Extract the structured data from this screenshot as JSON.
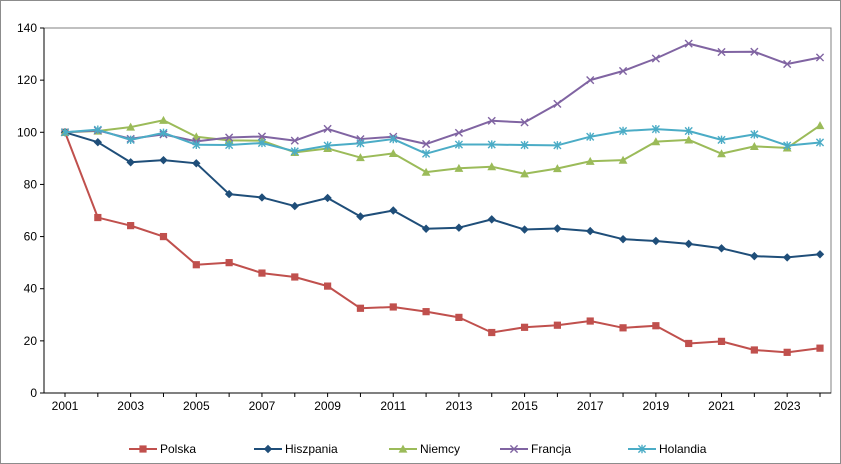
{
  "chart_data": {
    "type": "line",
    "title": "",
    "xlabel": "",
    "ylabel": "",
    "xlim": [
      2001,
      2024
    ],
    "ylim": [
      0,
      140
    ],
    "y_ticks": [
      0,
      20,
      40,
      60,
      80,
      100,
      120,
      140
    ],
    "x_ticks": [
      2001,
      2003,
      2005,
      2007,
      2009,
      2011,
      2013,
      2015,
      2017,
      2019,
      2021,
      2023
    ],
    "grid": false,
    "legend_position": "bottom",
    "x": [
      2001,
      2002,
      2003,
      2004,
      2005,
      2006,
      2007,
      2008,
      2009,
      2010,
      2011,
      2012,
      2013,
      2014,
      2015,
      2016,
      2017,
      2018,
      2019,
      2020,
      2021,
      2022,
      2023,
      2024
    ],
    "series": [
      {
        "name": "Polska",
        "color": "#c0504d",
        "marker": "square",
        "values": [
          100,
          67.3,
          64.2,
          60,
          49.2,
          50,
          46,
          44.5,
          41,
          32.5,
          33,
          31.2,
          29,
          23.2,
          25.2,
          26,
          27.6,
          25,
          25.8,
          19,
          19.8,
          16.5,
          15.6,
          17.2
        ]
      },
      {
        "name": "Hiszpania",
        "color": "#1f4e79",
        "marker": "diamond",
        "values": [
          100,
          96.2,
          88.5,
          89.3,
          88.1,
          76.3,
          75,
          71.7,
          74.8,
          67.7,
          70,
          63,
          63.4,
          66.6,
          62.7,
          63.1,
          62.1,
          59,
          58.3,
          57.2,
          55.5,
          52.5,
          52,
          53.2
        ]
      },
      {
        "name": "Niemcy",
        "color": "#9bbb59",
        "marker": "triangle",
        "values": [
          100,
          100.5,
          102,
          104.6,
          98.3,
          96.9,
          96.8,
          92.3,
          93.8,
          90.3,
          91.9,
          84.7,
          86.2,
          86.8,
          84.1,
          86.1,
          88.9,
          89.3,
          96.4,
          97.1,
          91.8,
          94.6,
          94,
          102.6
        ]
      },
      {
        "name": "Francja",
        "color": "#8064a2",
        "marker": "x",
        "values": [
          100,
          100.7,
          97.5,
          99.2,
          96.5,
          98,
          98.4,
          96.8,
          101.3,
          97.4,
          98.3,
          95.5,
          99.8,
          104.4,
          103.8,
          110.9,
          120,
          123.5,
          128.3,
          134,
          130.8,
          130.9,
          126.2,
          128.7
        ]
      },
      {
        "name": "Holandia",
        "color": "#4bacc6",
        "marker": "star",
        "values": [
          100,
          101,
          97.1,
          99.8,
          95.2,
          95.1,
          95.9,
          92.7,
          94.9,
          95.8,
          97.4,
          91.8,
          95.3,
          95.3,
          95.1,
          95,
          98.3,
          100.5,
          101.2,
          100.5,
          97.1,
          99.2,
          94.9,
          96.1
        ]
      }
    ]
  }
}
